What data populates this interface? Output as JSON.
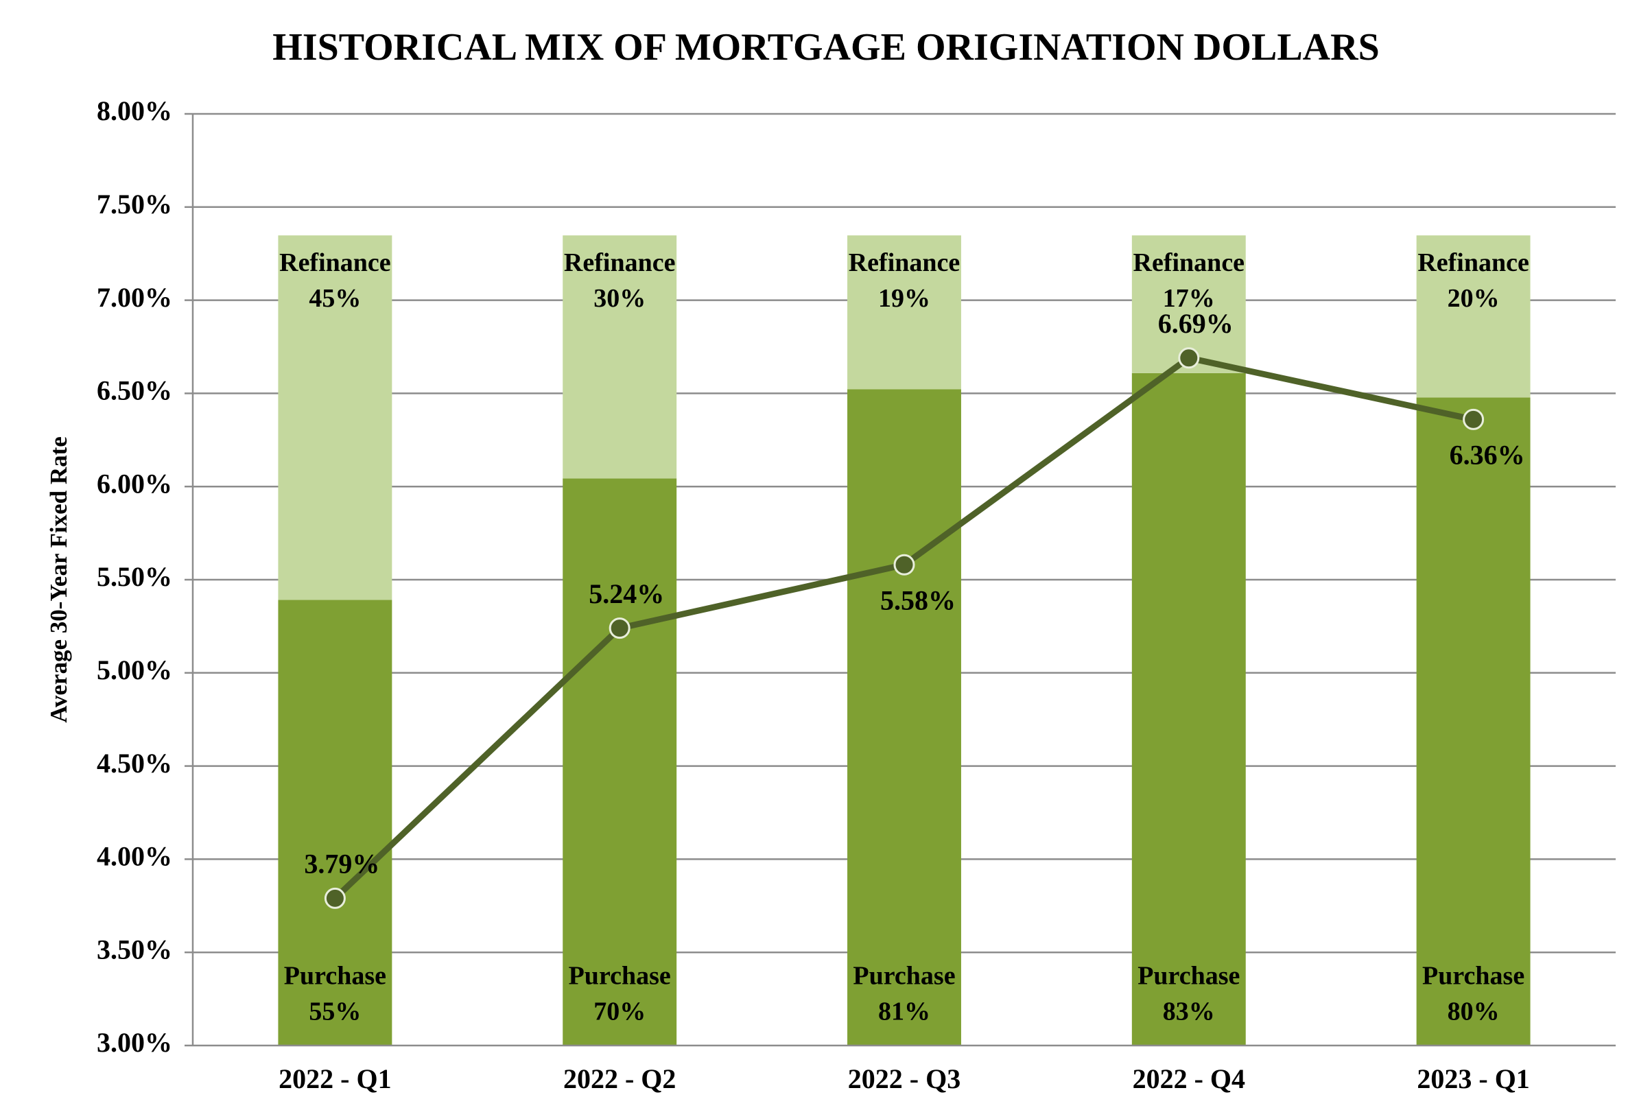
{
  "chart_data": {
    "type": "bar",
    "title": "HISTORICAL MIX OF MORTGAGE ORIGINATION DOLLARS",
    "y_label": "Average 30-Year Fixed Rate",
    "categories": [
      "2022 - Q1",
      "2022 - Q2",
      "2022 - Q3",
      "2022 - Q4",
      "2023 - Q1"
    ],
    "ylim": [
      3,
      8
    ],
    "yticks": [
      {
        "value": 3,
        "label": "3.00%"
      },
      {
        "value": 3.5,
        "label": "3.50%"
      },
      {
        "value": 4,
        "label": "4.00%"
      },
      {
        "value": 4.5,
        "label": "4.50%"
      },
      {
        "value": 5,
        "label": "5.00%"
      },
      {
        "value": 5.5,
        "label": "5.50%"
      },
      {
        "value": 6,
        "label": "6.00%"
      },
      {
        "value": 6.5,
        "label": "6.50%"
      },
      {
        "value": 7,
        "label": "7.00%"
      },
      {
        "value": 7.5,
        "label": "7.50%"
      },
      {
        "value": 8,
        "label": "8.00%"
      }
    ],
    "y2lim": [
      0,
      115
    ],
    "grid": true,
    "stacked": true,
    "series": [
      {
        "name": "Purchase",
        "type": "bar",
        "axis": "y2",
        "color": "#7fa033",
        "values": [
          55,
          70,
          81,
          83,
          80
        ],
        "value_labels": [
          "55%",
          "70%",
          "81%",
          "83%",
          "80%"
        ]
      },
      {
        "name": "Refinance",
        "type": "bar",
        "axis": "y2",
        "color": "#c4d89e",
        "values": [
          45,
          30,
          19,
          17,
          20
        ],
        "value_labels": [
          "45%",
          "30%",
          "19%",
          "17%",
          "20%"
        ]
      },
      {
        "type": "line",
        "color": "#4f6228",
        "values": [
          3.79,
          5.24,
          5.58,
          6.69,
          6.36
        ],
        "value_labels": [
          "3.79%",
          "5.24%",
          "5.58%",
          "6.69%",
          "6.36%"
        ],
        "label_positions": [
          "above",
          "above",
          "below",
          "above",
          "below"
        ]
      }
    ]
  }
}
